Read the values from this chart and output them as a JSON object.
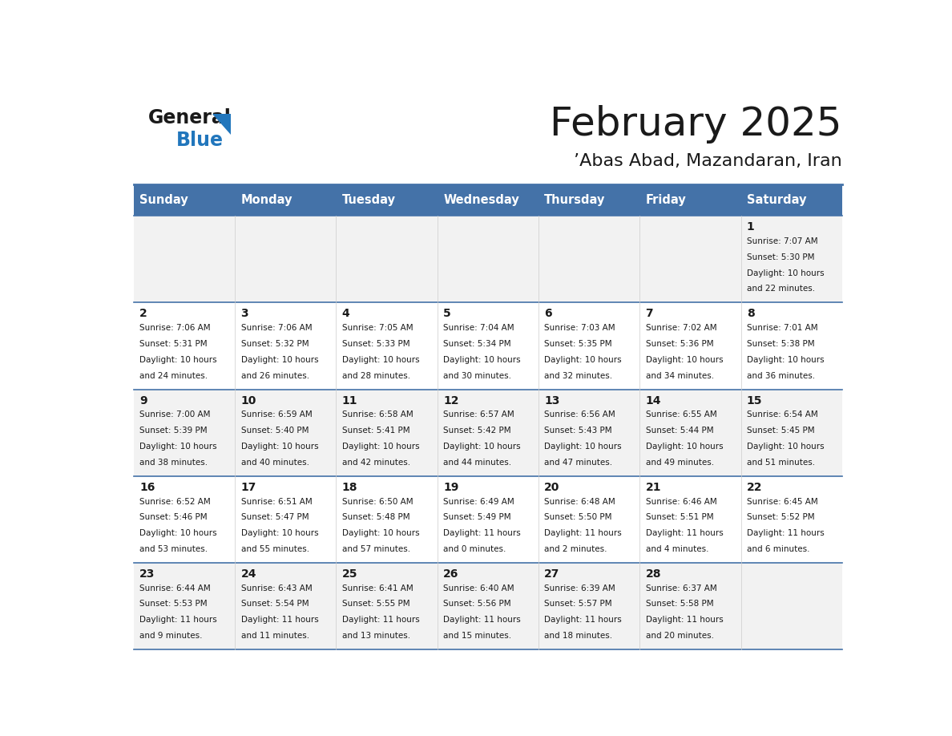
{
  "title": "February 2025",
  "subtitle": "’Abas Abad, Mazandaran, Iran",
  "header_bg": "#4472a8",
  "header_text": "#ffffff",
  "row_bg_odd": "#f2f2f2",
  "row_bg_even": "#ffffff",
  "separator_color": "#4472a8",
  "days_of_week": [
    "Sunday",
    "Monday",
    "Tuesday",
    "Wednesday",
    "Thursday",
    "Friday",
    "Saturday"
  ],
  "calendar": [
    [
      {
        "day": "",
        "sunrise": "",
        "sunset": "",
        "daylight": ""
      },
      {
        "day": "",
        "sunrise": "",
        "sunset": "",
        "daylight": ""
      },
      {
        "day": "",
        "sunrise": "",
        "sunset": "",
        "daylight": ""
      },
      {
        "day": "",
        "sunrise": "",
        "sunset": "",
        "daylight": ""
      },
      {
        "day": "",
        "sunrise": "",
        "sunset": "",
        "daylight": ""
      },
      {
        "day": "",
        "sunrise": "",
        "sunset": "",
        "daylight": ""
      },
      {
        "day": "1",
        "sunrise": "7:07 AM",
        "sunset": "5:30 PM",
        "daylight": "10 hours\nand 22 minutes."
      }
    ],
    [
      {
        "day": "2",
        "sunrise": "7:06 AM",
        "sunset": "5:31 PM",
        "daylight": "10 hours\nand 24 minutes."
      },
      {
        "day": "3",
        "sunrise": "7:06 AM",
        "sunset": "5:32 PM",
        "daylight": "10 hours\nand 26 minutes."
      },
      {
        "day": "4",
        "sunrise": "7:05 AM",
        "sunset": "5:33 PM",
        "daylight": "10 hours\nand 28 minutes."
      },
      {
        "day": "5",
        "sunrise": "7:04 AM",
        "sunset": "5:34 PM",
        "daylight": "10 hours\nand 30 minutes."
      },
      {
        "day": "6",
        "sunrise": "7:03 AM",
        "sunset": "5:35 PM",
        "daylight": "10 hours\nand 32 minutes."
      },
      {
        "day": "7",
        "sunrise": "7:02 AM",
        "sunset": "5:36 PM",
        "daylight": "10 hours\nand 34 minutes."
      },
      {
        "day": "8",
        "sunrise": "7:01 AM",
        "sunset": "5:38 PM",
        "daylight": "10 hours\nand 36 minutes."
      }
    ],
    [
      {
        "day": "9",
        "sunrise": "7:00 AM",
        "sunset": "5:39 PM",
        "daylight": "10 hours\nand 38 minutes."
      },
      {
        "day": "10",
        "sunrise": "6:59 AM",
        "sunset": "5:40 PM",
        "daylight": "10 hours\nand 40 minutes."
      },
      {
        "day": "11",
        "sunrise": "6:58 AM",
        "sunset": "5:41 PM",
        "daylight": "10 hours\nand 42 minutes."
      },
      {
        "day": "12",
        "sunrise": "6:57 AM",
        "sunset": "5:42 PM",
        "daylight": "10 hours\nand 44 minutes."
      },
      {
        "day": "13",
        "sunrise": "6:56 AM",
        "sunset": "5:43 PM",
        "daylight": "10 hours\nand 47 minutes."
      },
      {
        "day": "14",
        "sunrise": "6:55 AM",
        "sunset": "5:44 PM",
        "daylight": "10 hours\nand 49 minutes."
      },
      {
        "day": "15",
        "sunrise": "6:54 AM",
        "sunset": "5:45 PM",
        "daylight": "10 hours\nand 51 minutes."
      }
    ],
    [
      {
        "day": "16",
        "sunrise": "6:52 AM",
        "sunset": "5:46 PM",
        "daylight": "10 hours\nand 53 minutes."
      },
      {
        "day": "17",
        "sunrise": "6:51 AM",
        "sunset": "5:47 PM",
        "daylight": "10 hours\nand 55 minutes."
      },
      {
        "day": "18",
        "sunrise": "6:50 AM",
        "sunset": "5:48 PM",
        "daylight": "10 hours\nand 57 minutes."
      },
      {
        "day": "19",
        "sunrise": "6:49 AM",
        "sunset": "5:49 PM",
        "daylight": "11 hours\nand 0 minutes."
      },
      {
        "day": "20",
        "sunrise": "6:48 AM",
        "sunset": "5:50 PM",
        "daylight": "11 hours\nand 2 minutes."
      },
      {
        "day": "21",
        "sunrise": "6:46 AM",
        "sunset": "5:51 PM",
        "daylight": "11 hours\nand 4 minutes."
      },
      {
        "day": "22",
        "sunrise": "6:45 AM",
        "sunset": "5:52 PM",
        "daylight": "11 hours\nand 6 minutes."
      }
    ],
    [
      {
        "day": "23",
        "sunrise": "6:44 AM",
        "sunset": "5:53 PM",
        "daylight": "11 hours\nand 9 minutes."
      },
      {
        "day": "24",
        "sunrise": "6:43 AM",
        "sunset": "5:54 PM",
        "daylight": "11 hours\nand 11 minutes."
      },
      {
        "day": "25",
        "sunrise": "6:41 AM",
        "sunset": "5:55 PM",
        "daylight": "11 hours\nand 13 minutes."
      },
      {
        "day": "26",
        "sunrise": "6:40 AM",
        "sunset": "5:56 PM",
        "daylight": "11 hours\nand 15 minutes."
      },
      {
        "day": "27",
        "sunrise": "6:39 AM",
        "sunset": "5:57 PM",
        "daylight": "11 hours\nand 18 minutes."
      },
      {
        "day": "28",
        "sunrise": "6:37 AM",
        "sunset": "5:58 PM",
        "daylight": "11 hours\nand 20 minutes."
      },
      {
        "day": "",
        "sunrise": "",
        "sunset": "",
        "daylight": ""
      }
    ]
  ],
  "logo_general_color": "#1a1a1a",
  "logo_blue_color": "#2176bc",
  "logo_triangle_color": "#2176bc"
}
